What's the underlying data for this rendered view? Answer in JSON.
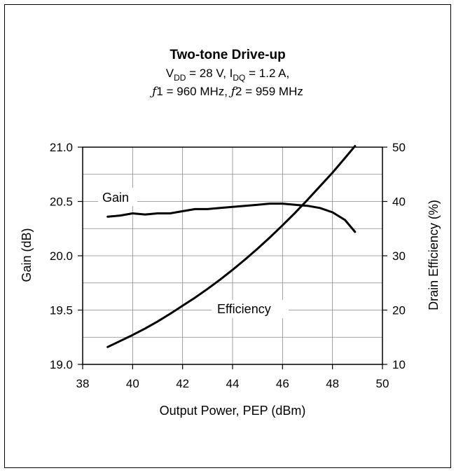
{
  "chart_data": {
    "type": "line",
    "title": "Two-tone Drive-up",
    "subtitle_line1": {
      "v": "V",
      "v_sub": "DD",
      "v_rest": " = 28 V, I",
      "i_sub": "DQ",
      "i_rest": " = 1.2 A,"
    },
    "subtitle_line2": {
      "f1_sym": "ƒ",
      "f1_rest": "1 = 960 MHz, ",
      "f2_sym": "ƒ",
      "f2_rest": "2 = 959 MHz"
    },
    "xlabel": "Output Power, PEP (dBm)",
    "ylabel_left": "Gain (dB)",
    "ylabel_right": "Drain Efficiency (%)",
    "xlim": [
      38,
      50
    ],
    "ylim_left": [
      19.0,
      21.0
    ],
    "ylim_right": [
      10,
      50
    ],
    "x_ticks": [
      "38",
      "40",
      "42",
      "44",
      "46",
      "48",
      "50"
    ],
    "y_left_ticks": [
      "19.0",
      "19.5",
      "20.0",
      "20.5",
      "21.0"
    ],
    "y_right_ticks": [
      "10",
      "20",
      "30",
      "40",
      "50"
    ],
    "grid": true,
    "series": [
      {
        "name": "Gain",
        "axis": "left",
        "x": [
          39.0,
          39.5,
          40.0,
          40.5,
          41.0,
          41.5,
          42.0,
          42.5,
          43.0,
          43.5,
          44.0,
          44.5,
          45.0,
          45.5,
          46.0,
          46.5,
          47.0,
          47.5,
          48.0,
          48.5,
          48.9
        ],
        "y": [
          20.36,
          20.37,
          20.39,
          20.38,
          20.39,
          20.39,
          20.41,
          20.43,
          20.43,
          20.44,
          20.45,
          20.46,
          20.47,
          20.48,
          20.48,
          20.47,
          20.46,
          20.44,
          20.4,
          20.33,
          20.22
        ]
      },
      {
        "name": "Efficiency",
        "axis": "right",
        "x": [
          39.0,
          39.5,
          40.0,
          40.5,
          41.0,
          41.5,
          42.0,
          42.5,
          43.0,
          43.5,
          44.0,
          44.5,
          45.0,
          45.5,
          46.0,
          46.5,
          47.0,
          47.5,
          48.0,
          48.5,
          48.9
        ],
        "y": [
          13.2,
          14.3,
          15.4,
          16.6,
          17.9,
          19.3,
          20.8,
          22.3,
          23.9,
          25.6,
          27.4,
          29.3,
          31.3,
          33.4,
          35.6,
          37.9,
          40.3,
          42.8,
          45.3,
          48.0,
          50.2
        ]
      }
    ]
  }
}
